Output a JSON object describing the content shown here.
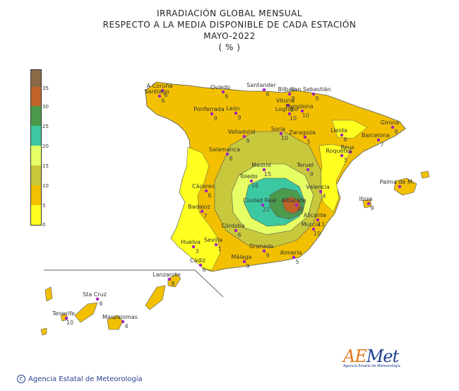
{
  "title": {
    "line1": "IRRADIACIÓN  GLOBAL MENSUAL",
    "line2": "RESPECTO  A LA MEDIA DISPONIBLE DE CADA ESTACIÓN",
    "line3": "MAYO-2022",
    "line4": "( % )"
  },
  "legend": {
    "colors": [
      "#ffff20",
      "#f2c000",
      "#c8c83c",
      "#e6ff64",
      "#3cc8a0",
      "#4c9a4c",
      "#c06428",
      "#8b6a48"
    ],
    "ticks": [
      "0",
      "5",
      "10",
      "15",
      "20",
      "25",
      "30",
      "35"
    ]
  },
  "stations": [
    {
      "name": "A Coruña",
      "value": "6"
    },
    {
      "name": "Santiago",
      "value": "6"
    },
    {
      "name": "Oviedo",
      "value": "6"
    },
    {
      "name": "Santander",
      "value": "6"
    },
    {
      "name": "Bilbao",
      "value": "9"
    },
    {
      "name": "San Sebastián",
      "value": "9"
    },
    {
      "name": "Vitoria",
      "value": "9"
    },
    {
      "name": "Pamplona",
      "value": "10"
    },
    {
      "name": "Logroño",
      "value": "10"
    },
    {
      "name": "Ponferrada",
      "value": "9"
    },
    {
      "name": "León",
      "value": "9"
    },
    {
      "name": "Girona",
      "value": "8"
    },
    {
      "name": "Lleida",
      "value": "6"
    },
    {
      "name": "Barcelona",
      "value": "7"
    },
    {
      "name": "Soria",
      "value": "10"
    },
    {
      "name": "Zaragoza",
      "value": "5"
    },
    {
      "name": "Valladolid",
      "value": "9"
    },
    {
      "name": "Reus",
      "value": ""
    },
    {
      "name": "Roquetes",
      "value": "3"
    },
    {
      "name": "Salamanca",
      "value": "8"
    },
    {
      "name": "Madrid",
      "value": "15"
    },
    {
      "name": "Teruel",
      "value": "9"
    },
    {
      "name": "Palma de M.",
      "value": ""
    },
    {
      "name": "Toledo",
      "value": "16"
    },
    {
      "name": "Cáceres",
      "value": "6"
    },
    {
      "name": "Valencia",
      "value": "4"
    },
    {
      "name": "Ciudad Real",
      "value": "22"
    },
    {
      "name": "Albacete",
      "value": "33"
    },
    {
      "name": "Ibiza",
      "value": "9"
    },
    {
      "name": "Badajoz",
      "value": "7"
    },
    {
      "name": "Alicante",
      "value": "11"
    },
    {
      "name": "Córdoba",
      "value": "6"
    },
    {
      "name": "Murcia",
      "value": "10"
    },
    {
      "name": "Huelva",
      "value": "3"
    },
    {
      "name": "Sevilla",
      "value": "1"
    },
    {
      "name": "Granada",
      "value": "9"
    },
    {
      "name": "Almería",
      "value": "5"
    },
    {
      "name": "Málaga",
      "value": "9"
    },
    {
      "name": "Cádiz",
      "value": "6"
    },
    {
      "name": "Lanzarote",
      "value": "8"
    },
    {
      "name": "Sta Cruz",
      "value": "6"
    },
    {
      "name": "Tenerife",
      "value": "10"
    },
    {
      "name": "Maspalomas",
      "value": "4"
    }
  ],
  "credit": "Agencia Estatal de Meteorología",
  "logo": {
    "main": "Met",
    "accent": "AE",
    "sub": "Agencia Estatal de Meteorología"
  }
}
